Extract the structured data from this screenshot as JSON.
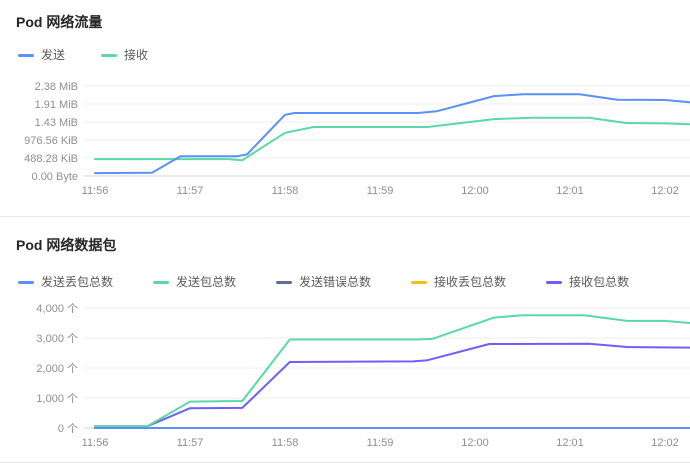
{
  "panels": [
    {
      "title": "Pod 网络流量"
    },
    {
      "title": "Pod 网络数据包"
    }
  ],
  "chart_data": [
    {
      "type": "line",
      "title": "Pod 网络流量",
      "legend_position": "top-left",
      "grid": "horizontal",
      "x_units": "minutes since 11:56",
      "y_units": "decimal MB (gridline step 0.5 MB = 488.28 KiB)",
      "x_tick_labels": [
        "11:56",
        "11:57",
        "11:58",
        "11:59",
        "12:00",
        "12:01",
        "12:02"
      ],
      "y_tick_labels": [
        "2.38 MiB",
        "1.91 MiB",
        "1.43 MiB",
        "976.56 KiB",
        "488.28 KiB",
        "0.00 Byte"
      ],
      "ylim": [
        0,
        2.5
      ],
      "xlim": [
        0,
        6.26
      ],
      "series": [
        {
          "name": "发送",
          "color": "#5B8FF9",
          "points": [
            [
              0,
              0.08
            ],
            [
              0.6,
              0.09
            ],
            [
              0.9,
              0.55
            ],
            [
              1.5,
              0.55
            ],
            [
              1.6,
              0.6
            ],
            [
              2.0,
              1.7
            ],
            [
              2.1,
              1.75
            ],
            [
              3.4,
              1.75
            ],
            [
              3.6,
              1.8
            ],
            [
              4.2,
              2.22
            ],
            [
              4.5,
              2.27
            ],
            [
              5.1,
              2.27
            ],
            [
              5.5,
              2.12
            ],
            [
              6.0,
              2.11
            ],
            [
              6.26,
              2.05
            ]
          ]
        },
        {
          "name": "接收",
          "color": "#5AD8A6",
          "points": [
            [
              0,
              0.47
            ],
            [
              1.4,
              0.47
            ],
            [
              1.55,
              0.44
            ],
            [
              2.0,
              1.2
            ],
            [
              2.3,
              1.36
            ],
            [
              3.5,
              1.36
            ],
            [
              4.2,
              1.58
            ],
            [
              4.6,
              1.62
            ],
            [
              5.2,
              1.62
            ],
            [
              5.6,
              1.47
            ],
            [
              6.0,
              1.46
            ],
            [
              6.26,
              1.44
            ]
          ]
        }
      ]
    },
    {
      "type": "line",
      "title": "Pod 网络数据包",
      "legend_position": "top-left",
      "grid": "horizontal",
      "x_units": "minutes since 11:56",
      "y_units": "packets (个)",
      "x_tick_labels": [
        "11:56",
        "11:57",
        "11:58",
        "11:59",
        "12:00",
        "12:01",
        "12:02"
      ],
      "y_tick_labels": [
        "4,000 个",
        "3,000 个",
        "2,000 个",
        "1,000 个",
        "0 个"
      ],
      "ylim": [
        0,
        4000
      ],
      "xlim": [
        0,
        6.26
      ],
      "series": [
        {
          "name": "发送丢包总数",
          "color": "#5B8FF9",
          "points": [
            [
              0,
              0
            ],
            [
              6.26,
              0
            ]
          ]
        },
        {
          "name": "发送包总数",
          "color": "#5AD8A6",
          "points": [
            [
              0,
              60
            ],
            [
              0.55,
              60
            ],
            [
              1.0,
              880
            ],
            [
              1.55,
              900
            ],
            [
              2.05,
              2950
            ],
            [
              3.4,
              2950
            ],
            [
              3.55,
              2970
            ],
            [
              4.2,
              3680
            ],
            [
              4.5,
              3760
            ],
            [
              5.15,
              3760
            ],
            [
              5.6,
              3570
            ],
            [
              6.0,
              3570
            ],
            [
              6.26,
              3500
            ]
          ]
        },
        {
          "name": "发送错误总数",
          "color": "#5D7092",
          "points": [
            [
              0,
              0
            ],
            [
              6.26,
              0
            ]
          ]
        },
        {
          "name": "接收丢包总数",
          "color": "#F6BD16",
          "points": [
            [
              0,
              0
            ],
            [
              6.26,
              0
            ]
          ]
        },
        {
          "name": "接收包总数",
          "color": "#6F5EF9",
          "points": [
            [
              0,
              55
            ],
            [
              0.55,
              55
            ],
            [
              1.0,
              660
            ],
            [
              1.55,
              670
            ],
            [
              2.05,
              2200
            ],
            [
              3.35,
              2220
            ],
            [
              3.5,
              2260
            ],
            [
              4.15,
              2800
            ],
            [
              5.2,
              2810
            ],
            [
              5.6,
              2700
            ],
            [
              6.26,
              2680
            ]
          ]
        }
      ]
    }
  ]
}
